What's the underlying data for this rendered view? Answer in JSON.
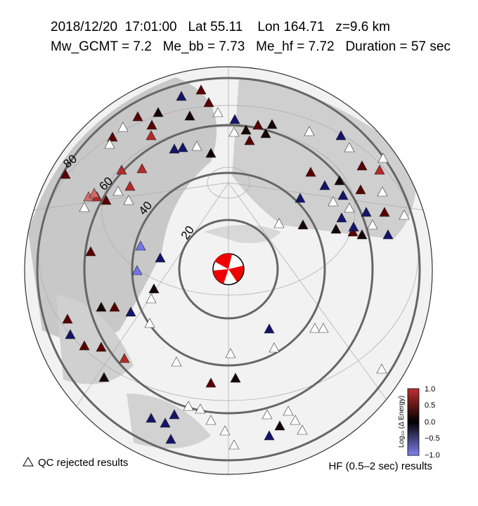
{
  "header": {
    "line1": "2018/12/20  17:01:00   Lat 55.11    Lon 164.71   z=9.6 km",
    "line2": "Mw_GCMT = 7.2   Me_bb = 7.73   Me_hf = 7.72   Duration = 57 sec"
  },
  "map": {
    "distance_labels": [
      "20",
      "40",
      "60",
      "80"
    ]
  },
  "colorbar": {
    "label": "Log₁₀ (Δ Energy)",
    "ticks": [
      "1.0",
      "0.5",
      "0.0",
      "−0.5",
      "−1.0"
    ]
  },
  "legend": {
    "qc": "QC rejected results",
    "hf": "HF (0.5–2 sec) results"
  }
}
